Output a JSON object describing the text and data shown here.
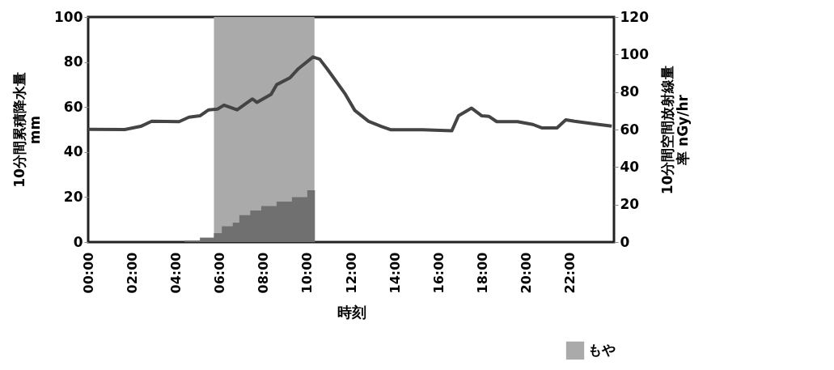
{
  "chart_data": {
    "type": "line",
    "xlabel": "時刻",
    "ylabel": "10分間累積降水量 mm",
    "y2label": "10分間空間放射線量率 nGy/hr",
    "xlim": [
      0,
      24
    ],
    "xticks": [
      {
        "value": 0,
        "label": "00:00"
      },
      {
        "value": 2,
        "label": "02:00"
      },
      {
        "value": 4,
        "label": "04:00"
      },
      {
        "value": 6,
        "label": "06:00"
      },
      {
        "value": 8,
        "label": "08:00"
      },
      {
        "value": 10,
        "label": "10:00"
      },
      {
        "value": 12,
        "label": "12:00"
      },
      {
        "value": 14,
        "label": "14:00"
      },
      {
        "value": 16,
        "label": "16:00"
      },
      {
        "value": 18,
        "label": "18:00"
      },
      {
        "value": 20,
        "label": "20:00"
      },
      {
        "value": 22,
        "label": "22:00"
      }
    ],
    "ylim": [
      0,
      100
    ],
    "yticks": [
      0,
      20,
      40,
      60,
      80,
      100
    ],
    "y2lim": [
      0,
      120
    ],
    "y2ticks": [
      0,
      20,
      40,
      60,
      80,
      100,
      120
    ],
    "grid": false,
    "legend": "bottom right",
    "bands": [
      {
        "axis": "x",
        "from": 5.74,
        "to": 10.33,
        "label": "もや",
        "color": "#aaaaaa"
      }
    ],
    "series": [
      {
        "type": "area",
        "axis": "y",
        "color": "#707070",
        "x": [
          4.4,
          5.1,
          5.74,
          6.1,
          6.6,
          6.9,
          7.4,
          7.9,
          8.6,
          9.3,
          10.0,
          10.35
        ],
        "values": [
          0.7,
          2,
          4,
          7,
          8.6,
          12,
          14,
          16,
          18,
          20,
          23,
          25
        ]
      },
      {
        "axis": "y2",
        "color": "#444444",
        "x": [
          0,
          1.67,
          2.4,
          2.9,
          4.15,
          4.6,
          5.1,
          5.5,
          5.9,
          6.2,
          6.8,
          7.5,
          7.7,
          8.35,
          8.6,
          9.2,
          9.6,
          10.26,
          10.57,
          10.9,
          11.3,
          11.74,
          12.17,
          12.8,
          13.4,
          13.8,
          15.26,
          16.6,
          16.9,
          17.5,
          17.97,
          18.3,
          18.65,
          19.6,
          20.3,
          20.7,
          21.4,
          21.8,
          22.2,
          23.3,
          23.9
        ],
        "values": [
          60.1,
          60,
          61.7,
          64.4,
          64.2,
          66.6,
          67.3,
          70.5,
          70.9,
          73,
          70.5,
          76.3,
          74.5,
          78.8,
          83.9,
          87.5,
          92.5,
          98.7,
          97.5,
          92.5,
          86,
          78.8,
          70.2,
          64.4,
          61.6,
          59.9,
          59.9,
          59.4,
          67.3,
          71.4,
          67.3,
          67,
          64.2,
          64.2,
          62.7,
          60.9,
          60.9,
          65.2,
          64.4,
          62.7,
          61.8
        ]
      }
    ]
  }
}
